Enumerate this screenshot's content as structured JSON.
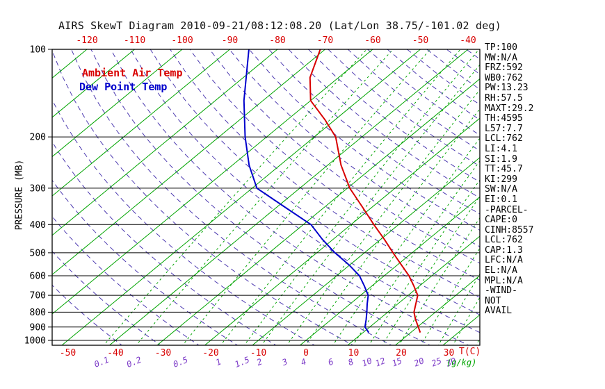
{
  "title": "AIRS SkewT Diagram 2010-09-21/08:12:08.20 (Lat/Lon 38.75/-101.02 deg)",
  "legend": {
    "temp": "Ambient Air Temp",
    "dewpoint": "Dew Point Temp"
  },
  "axes": {
    "pressure_label": "PRESSURE (MB)",
    "pressure_ticks": [
      100,
      200,
      300,
      400,
      500,
      600,
      700,
      800,
      900,
      1000
    ],
    "top_temp_ticks": [
      -120,
      -110,
      -100,
      -90,
      -80,
      -70,
      -60,
      -50,
      -40
    ],
    "bottom_temp_ticks": [
      -50,
      -40,
      -30,
      -20,
      -10,
      0,
      10,
      20,
      30
    ],
    "mixing_ratio_tick_labels": [
      0.1,
      0.2,
      0.5,
      1,
      1.5,
      2,
      3,
      4,
      6,
      8,
      10,
      12,
      15,
      20,
      25,
      30
    ],
    "temp_unit": "T(C)",
    "ratio_unit": "(g/kg)"
  },
  "colors": {
    "isotherm": "#00a400",
    "mixing_ratio": "#00a400",
    "adiabat": "#4d3ab0",
    "ratio_label": "#7d3cc8",
    "temp_curve": "#d80000",
    "dew_curve": "#0000cc",
    "axis": "#000000",
    "tick_red": "#d80000"
  },
  "stats": [
    "TP:100",
    "MW:N/A",
    "FRZ:592",
    "WB0:762",
    "PW:13.23",
    "RH:57.5",
    "MAXT:29.2",
    "TH:4595",
    "L57:7.7",
    "LCL:762",
    "LI:4.1",
    "SI:1.9",
    "TT:45.7",
    "KI:299",
    "SW:N/A",
    "EI:0.1",
    "-PARCEL-",
    "CAPE:0",
    "CINH:8557",
    "LCL:762",
    "CAP:1.3",
    "LFC:N/A",
    "EL:N/A",
    "MPL:N/A",
    "-WIND-",
    "NOT",
    "AVAIL"
  ],
  "chart_data": {
    "type": "line",
    "title": "AIRS SkewT Diagram 2010-09-21/08:12:08.20 (Lat/Lon 38.75/-101.02 deg)",
    "xlabel": "T(C)",
    "ylabel": "PRESSURE (MB)",
    "y_scale": "log",
    "pressure_range": [
      100,
      1050
    ],
    "temp_axis_range_c": [
      -50,
      35
    ],
    "skew": "45deg",
    "grid": "skewt (isotherms, dry adiabats, mixing ratio lines)",
    "legend_position": "top-left inside plot",
    "series": [
      {
        "name": "Ambient Air Temp",
        "color": "#d80000",
        "points_p_t": [
          [
            940,
            22.0
          ],
          [
            900,
            20.2
          ],
          [
            850,
            17.8
          ],
          [
            800,
            15.5
          ],
          [
            750,
            13.8
          ],
          [
            700,
            12.0
          ],
          [
            650,
            8.8
          ],
          [
            600,
            5.2
          ],
          [
            550,
            0.8
          ],
          [
            500,
            -4.0
          ],
          [
            450,
            -9.2
          ],
          [
            400,
            -15.2
          ],
          [
            350,
            -21.8
          ],
          [
            300,
            -29.5
          ],
          [
            250,
            -37.2
          ],
          [
            200,
            -45.5
          ],
          [
            175,
            -52.0
          ],
          [
            150,
            -60.0
          ],
          [
            125,
            -66.0
          ],
          [
            100,
            -71.0
          ]
        ]
      },
      {
        "name": "Dew Point Temp",
        "color": "#0000cc",
        "points_p_t": [
          [
            940,
            11.2
          ],
          [
            900,
            9.0
          ],
          [
            850,
            7.4
          ],
          [
            800,
            5.6
          ],
          [
            750,
            3.6
          ],
          [
            700,
            1.6
          ],
          [
            650,
            -1.6
          ],
          [
            600,
            -5.2
          ],
          [
            550,
            -10.2
          ],
          [
            500,
            -16.2
          ],
          [
            450,
            -22.2
          ],
          [
            400,
            -28.4
          ],
          [
            350,
            -38.0
          ],
          [
            300,
            -49.0
          ],
          [
            250,
            -56.5
          ],
          [
            200,
            -64.5
          ],
          [
            150,
            -74.0
          ],
          [
            100,
            -86.0
          ]
        ]
      }
    ],
    "background": {
      "isotherms_c": {
        "min": -120,
        "max": 40,
        "step": 10
      },
      "dry_adiabats_c": {
        "min": -40,
        "max": 184,
        "step": 8
      },
      "mixing_ratio_lines_g_kg": [
        0.1,
        0.2,
        0.5,
        1,
        1.5,
        2,
        3,
        4,
        6,
        8,
        10,
        12,
        15,
        20,
        25,
        30,
        40,
        50,
        60,
        80
      ]
    }
  }
}
